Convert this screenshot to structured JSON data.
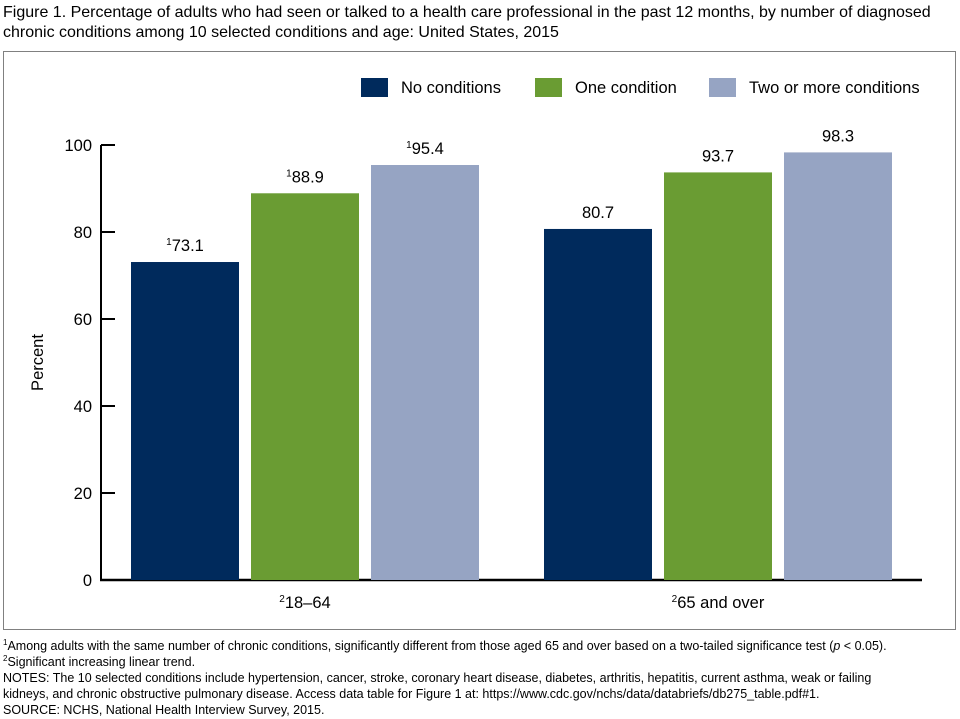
{
  "title": "Figure 1. Percentage of adults who had seen or talked to a health care professional in the past 12 months, by number of diagnosed chronic conditions among 10 selected conditions and age: United States, 2015",
  "chart_data": {
    "type": "bar",
    "title": "Figure 1. Percentage of adults who had seen or talked to a health care professional in the past 12 months, by number of diagnosed chronic conditions among 10 selected conditions and age: United States, 2015",
    "xlabel": "",
    "ylabel": "Percent",
    "ylim": [
      0,
      100
    ],
    "yticks": [
      0,
      20,
      40,
      60,
      80,
      100
    ],
    "grid": false,
    "legend_position": "top-right",
    "categories": [
      {
        "label": "18–64",
        "sup": "2"
      },
      {
        "label": "65 and over",
        "sup": "2"
      }
    ],
    "series": [
      {
        "name": "No conditions",
        "color": "#002a5c",
        "values": [
          73.1,
          80.7
        ],
        "label_sups": [
          "1",
          ""
        ]
      },
      {
        "name": "One condition",
        "color": "#6a9c33",
        "values": [
          88.9,
          93.7
        ],
        "label_sups": [
          "1",
          ""
        ]
      },
      {
        "name": "Two or more conditions",
        "color": "#96a4c3",
        "values": [
          95.4,
          98.3
        ],
        "label_sups": [
          "1",
          ""
        ]
      }
    ]
  },
  "footnotes": {
    "note1_sup": "1",
    "note1_a": "Among adults with the same number of chronic conditions, significantly different from those aged 65 and over based on a two-tailed significance test (",
    "note1_p": "p",
    "note1_b": " < 0.05).",
    "note2_sup": "2",
    "note2": "Significant increasing linear trend.",
    "notes_line1": "NOTES: The 10 selected conditions include hypertension, cancer, stroke, coronary heart disease, diabetes, arthritis, hepatitis, current asthma, weak or failing",
    "notes_line2": "kidneys, and chronic obstructive pulmonary disease. Access data table for Figure 1 at: https://www.cdc.gov/nchs/data/databriefs/db275_table.pdf#1.",
    "source": "SOURCE: NCHS, National Health Interview Survey, 2015."
  }
}
